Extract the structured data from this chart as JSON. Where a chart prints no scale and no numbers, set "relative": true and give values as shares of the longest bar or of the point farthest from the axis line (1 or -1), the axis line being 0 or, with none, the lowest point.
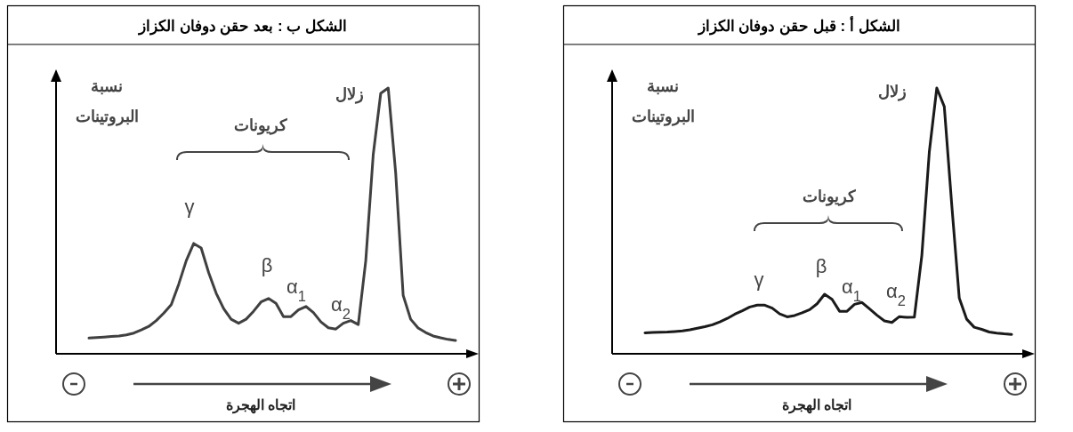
{
  "chart_data": [
    {
      "type": "line",
      "title": "الشكل ب : بعد حقن دوفان الكزاز",
      "ylabel": "نسبة البروتينات",
      "xlabel": "اتجاه الهجرة",
      "relative": true,
      "categories": [
        null,
        null,
        null,
        null,
        null,
        null,
        null,
        null,
        null,
        null,
        null,
        null,
        null,
        null,
        null,
        null,
        null,
        null,
        null,
        null,
        null,
        null,
        null,
        null,
        null,
        null,
        null,
        null,
        null,
        null,
        null,
        null,
        null,
        null,
        null,
        null,
        null,
        null,
        null,
        null,
        null,
        null,
        null,
        null,
        null,
        null,
        null,
        null,
        null,
        null
      ],
      "annotations": [
        "زلال",
        "كريونات",
        "γ",
        "β",
        "α$_{1}$",
        "α$_{2}$"
      ],
      "series": [
        {
          "color": "#404040",
          "values": [
            0.059,
            0.061,
            0.063,
            0.065,
            0.067,
            0.071,
            0.078,
            0.09,
            0.103,
            0.125,
            0.153,
            0.185,
            0.262,
            0.35,
            0.415,
            0.398,
            0.305,
            0.228,
            0.17,
            0.13,
            0.115,
            0.13,
            0.16,
            0.195,
            0.208,
            0.19,
            0.14,
            0.14,
            0.165,
            0.178,
            0.155,
            0.12,
            0.098,
            0.093,
            0.115,
            0.125,
            0.11,
            0.35,
            0.75,
            0.98,
            1,
            0.68,
            0.22,
            0.13,
            0.097,
            0.08,
            0.067,
            0.06,
            0.054,
            0.05
          ]
        }
      ]
    },
    {
      "type": "line",
      "title": "الشكل أ : قبل حقن دوفان الكزاز",
      "ylabel": "نسبة البروتينات",
      "xlabel": "اتجاه الهجرة",
      "relative": true,
      "categories": [
        null,
        null,
        null,
        null,
        null,
        null,
        null,
        null,
        null,
        null,
        null,
        null,
        null,
        null,
        null,
        null,
        null,
        null,
        null,
        null,
        null,
        null,
        null,
        null,
        null,
        null,
        null,
        null,
        null,
        null,
        null,
        null,
        null,
        null,
        null,
        null,
        null,
        null,
        null,
        null,
        null,
        null,
        null,
        null,
        null,
        null,
        null,
        null,
        null,
        null
      ],
      "annotations": [
        "زلال",
        "كريونات",
        "γ",
        "β",
        "α$_{1}$",
        "α$_{2}$"
      ],
      "series": [
        {
          "color": "#1a1a1a",
          "values": [
            0.079,
            0.08,
            0.081,
            0.082,
            0.084,
            0.086,
            0.09,
            0.096,
            0.102,
            0.109,
            0.12,
            0.133,
            0.149,
            0.162,
            0.176,
            0.183,
            0.183,
            0.172,
            0.15,
            0.139,
            0.144,
            0.154,
            0.166,
            0.188,
            0.224,
            0.205,
            0.16,
            0.16,
            0.186,
            0.193,
            0.169,
            0.145,
            0.124,
            0.118,
            0.14,
            0.137,
            0.138,
            0.37,
            0.76,
            1,
            0.93,
            0.56,
            0.21,
            0.13,
            0.1,
            0.092,
            0.082,
            0.078,
            0.075,
            0.073
          ]
        }
      ]
    }
  ]
}
